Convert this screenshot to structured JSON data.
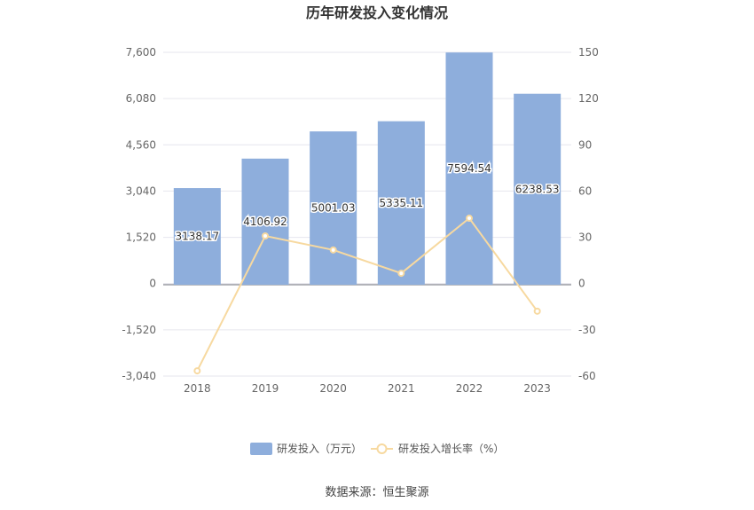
{
  "chart_data": {
    "type": "bar",
    "title": "历年研发投入变化情况",
    "categories": [
      "2018",
      "2019",
      "2020",
      "2021",
      "2022",
      "2023"
    ],
    "series": [
      {
        "name": "研发投入（万元）",
        "type": "bar",
        "axis": "left",
        "color": "#8eaedc",
        "values": [
          3138.17,
          4106.92,
          5001.03,
          5335.11,
          7594.54,
          6238.53
        ],
        "value_labels": [
          "3138.17",
          "4106.92",
          "5001.03",
          "5335.11",
          "7594.54",
          "6238.53"
        ]
      },
      {
        "name": "研发投入增长率（%）",
        "type": "line",
        "axis": "right",
        "color": "#f7d9a0",
        "values": [
          -56.6,
          30.9,
          21.8,
          6.7,
          42.4,
          -17.9
        ]
      }
    ],
    "ylim_left": [
      -3040,
      7600
    ],
    "yticks_left": [
      "7,600",
      "6,080",
      "4,560",
      "3,040",
      "1,520",
      "0",
      "-1,520",
      "-3,040"
    ],
    "ylim_right": [
      -60,
      150
    ],
    "yticks_right": [
      "150",
      "120",
      "90",
      "60",
      "30",
      "0",
      "-30",
      "-60"
    ],
    "grid": true,
    "legend_position": "bottom"
  },
  "source_text": "数据来源：恒生聚源"
}
